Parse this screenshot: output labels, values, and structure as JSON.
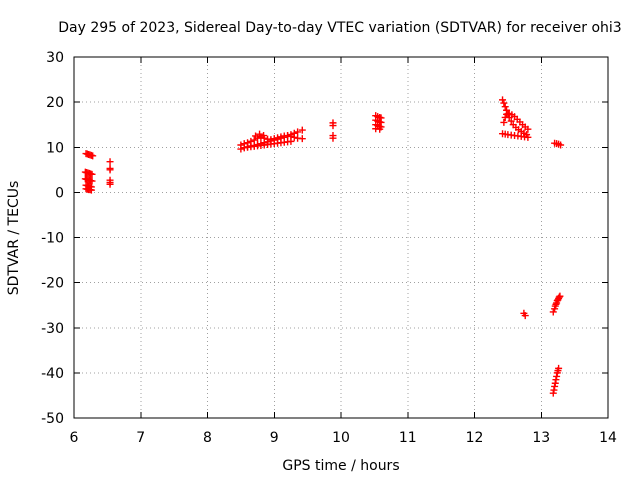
{
  "chart_data": {
    "type": "scatter",
    "title": "Day 295 of 2023, Sidereal Day-to-day VTEC variation (SDTVAR) for receiver ohi3",
    "xlabel": "GPS time / hours",
    "ylabel": "SDTVAR / TECUs",
    "xlim": [
      6,
      14
    ],
    "ylim": [
      -50,
      30
    ],
    "xticks": [
      "6",
      "7",
      "8",
      "9",
      "10",
      "11",
      "12",
      "13",
      "14"
    ],
    "yticks": [
      "30",
      "20",
      "10",
      "0",
      "-10",
      "-20",
      "-30",
      "-40",
      "-50"
    ],
    "grid": true,
    "marker": "plus",
    "series": [
      {
        "name": "SDTVAR",
        "color": "#ff0000",
        "x": [
          6.18,
          6.2,
          6.22,
          6.24,
          6.26,
          6.28,
          6.17,
          6.19,
          6.21,
          6.23,
          6.25,
          6.27,
          6.17,
          6.19,
          6.21,
          6.23,
          6.25,
          6.27,
          6.18,
          6.2,
          6.22,
          6.24,
          6.26,
          6.18,
          6.2,
          6.22,
          6.24,
          6.26,
          6.54,
          6.54,
          6.54,
          6.54,
          6.54,
          6.54,
          8.5,
          8.55,
          8.6,
          8.65,
          8.7,
          8.75,
          8.8,
          8.85,
          8.9,
          8.95,
          9.0,
          9.05,
          9.1,
          9.15,
          9.2,
          9.25,
          9.3,
          9.35,
          9.42,
          8.5,
          8.55,
          8.6,
          8.65,
          8.7,
          8.75,
          8.8,
          8.85,
          8.9,
          8.95,
          9.0,
          9.05,
          9.1,
          9.15,
          9.2,
          9.25,
          9.3,
          9.35,
          9.42,
          8.55,
          8.6,
          8.65,
          8.7,
          8.75,
          8.8,
          8.85,
          8.9,
          8.95,
          9.0,
          9.05,
          9.1,
          9.15,
          9.2,
          9.25,
          8.72,
          8.78,
          8.84,
          9.88,
          9.88,
          9.88,
          9.88,
          10.52,
          10.55,
          10.58,
          10.6,
          10.52,
          10.55,
          10.58,
          10.6,
          10.52,
          10.55,
          10.58,
          10.6,
          10.52,
          10.58,
          12.42,
          12.44,
          12.46,
          12.48,
          12.5,
          12.52,
          12.55,
          12.58,
          12.62,
          12.66,
          12.7,
          12.74,
          12.78,
          12.44,
          12.46,
          12.48,
          12.52,
          12.56,
          12.6,
          12.64,
          12.68,
          12.72,
          12.76,
          12.8,
          12.42,
          12.46,
          12.5,
          12.55,
          12.6,
          12.65,
          12.7,
          12.75,
          12.8,
          13.2,
          13.23,
          13.26,
          13.29,
          12.74,
          12.76,
          13.18,
          13.2,
          13.21,
          13.22,
          13.23,
          13.24,
          13.25,
          13.26,
          13.27,
          13.28,
          13.18,
          13.19,
          13.2,
          13.21,
          13.22,
          13.23,
          13.24,
          13.25,
          13.26
        ],
        "y": [
          8.6,
          8.5,
          8.4,
          8.3,
          8.2,
          8.1,
          4.5,
          4.4,
          4.3,
          4.2,
          4.1,
          4.0,
          3.0,
          2.9,
          2.8,
          2.7,
          2.6,
          2.5,
          1.6,
          1.5,
          1.4,
          1.3,
          1.2,
          0.8,
          0.7,
          0.6,
          0.6,
          0.5,
          6.8,
          5.3,
          5.0,
          2.7,
          2.2,
          1.8,
          9.6,
          9.9,
          10.1,
          10.3,
          10.4,
          10.6,
          10.8,
          11.0,
          11.2,
          11.4,
          11.6,
          11.8,
          12.0,
          12.2,
          12.5,
          12.8,
          13.1,
          13.4,
          13.8,
          10.5,
          10.8,
          11.0,
          11.3,
          11.6,
          12.0,
          12.3,
          12.0,
          11.8,
          11.7,
          11.9,
          12.1,
          12.3,
          12.5,
          12.6,
          12.4,
          12.2,
          12.0,
          11.9,
          9.9,
          10.0,
          10.1,
          10.2,
          10.3,
          10.4,
          10.5,
          10.6,
          10.7,
          10.8,
          10.9,
          11.0,
          11.1,
          11.2,
          11.3,
          12.5,
          12.9,
          12.6,
          15.4,
          14.8,
          12.6,
          12.0,
          17.0,
          16.8,
          16.6,
          16.5,
          16.0,
          15.8,
          15.6,
          15.5,
          15.0,
          14.8,
          14.6,
          14.5,
          14.1,
          14.0,
          20.5,
          19.8,
          19.0,
          18.2,
          17.4,
          16.6,
          15.8,
          15.0,
          14.4,
          13.9,
          13.5,
          13.1,
          12.8,
          15.5,
          16.6,
          17.3,
          17.5,
          17.2,
          16.8,
          16.2,
          15.6,
          15.0,
          14.5,
          14.0,
          13.0,
          12.9,
          12.8,
          12.7,
          12.6,
          12.5,
          12.4,
          12.3,
          12.2,
          10.9,
          10.8,
          10.7,
          10.5,
          -26.8,
          -27.3,
          -26.5,
          -25.8,
          -25.2,
          -24.8,
          -24.5,
          -24.0,
          -23.8,
          -23.5,
          -23.2,
          -23.0,
          -44.5,
          -43.8,
          -43.0,
          -42.3,
          -41.5,
          -40.8,
          -40.0,
          -39.5,
          -39.0
        ]
      }
    ]
  }
}
